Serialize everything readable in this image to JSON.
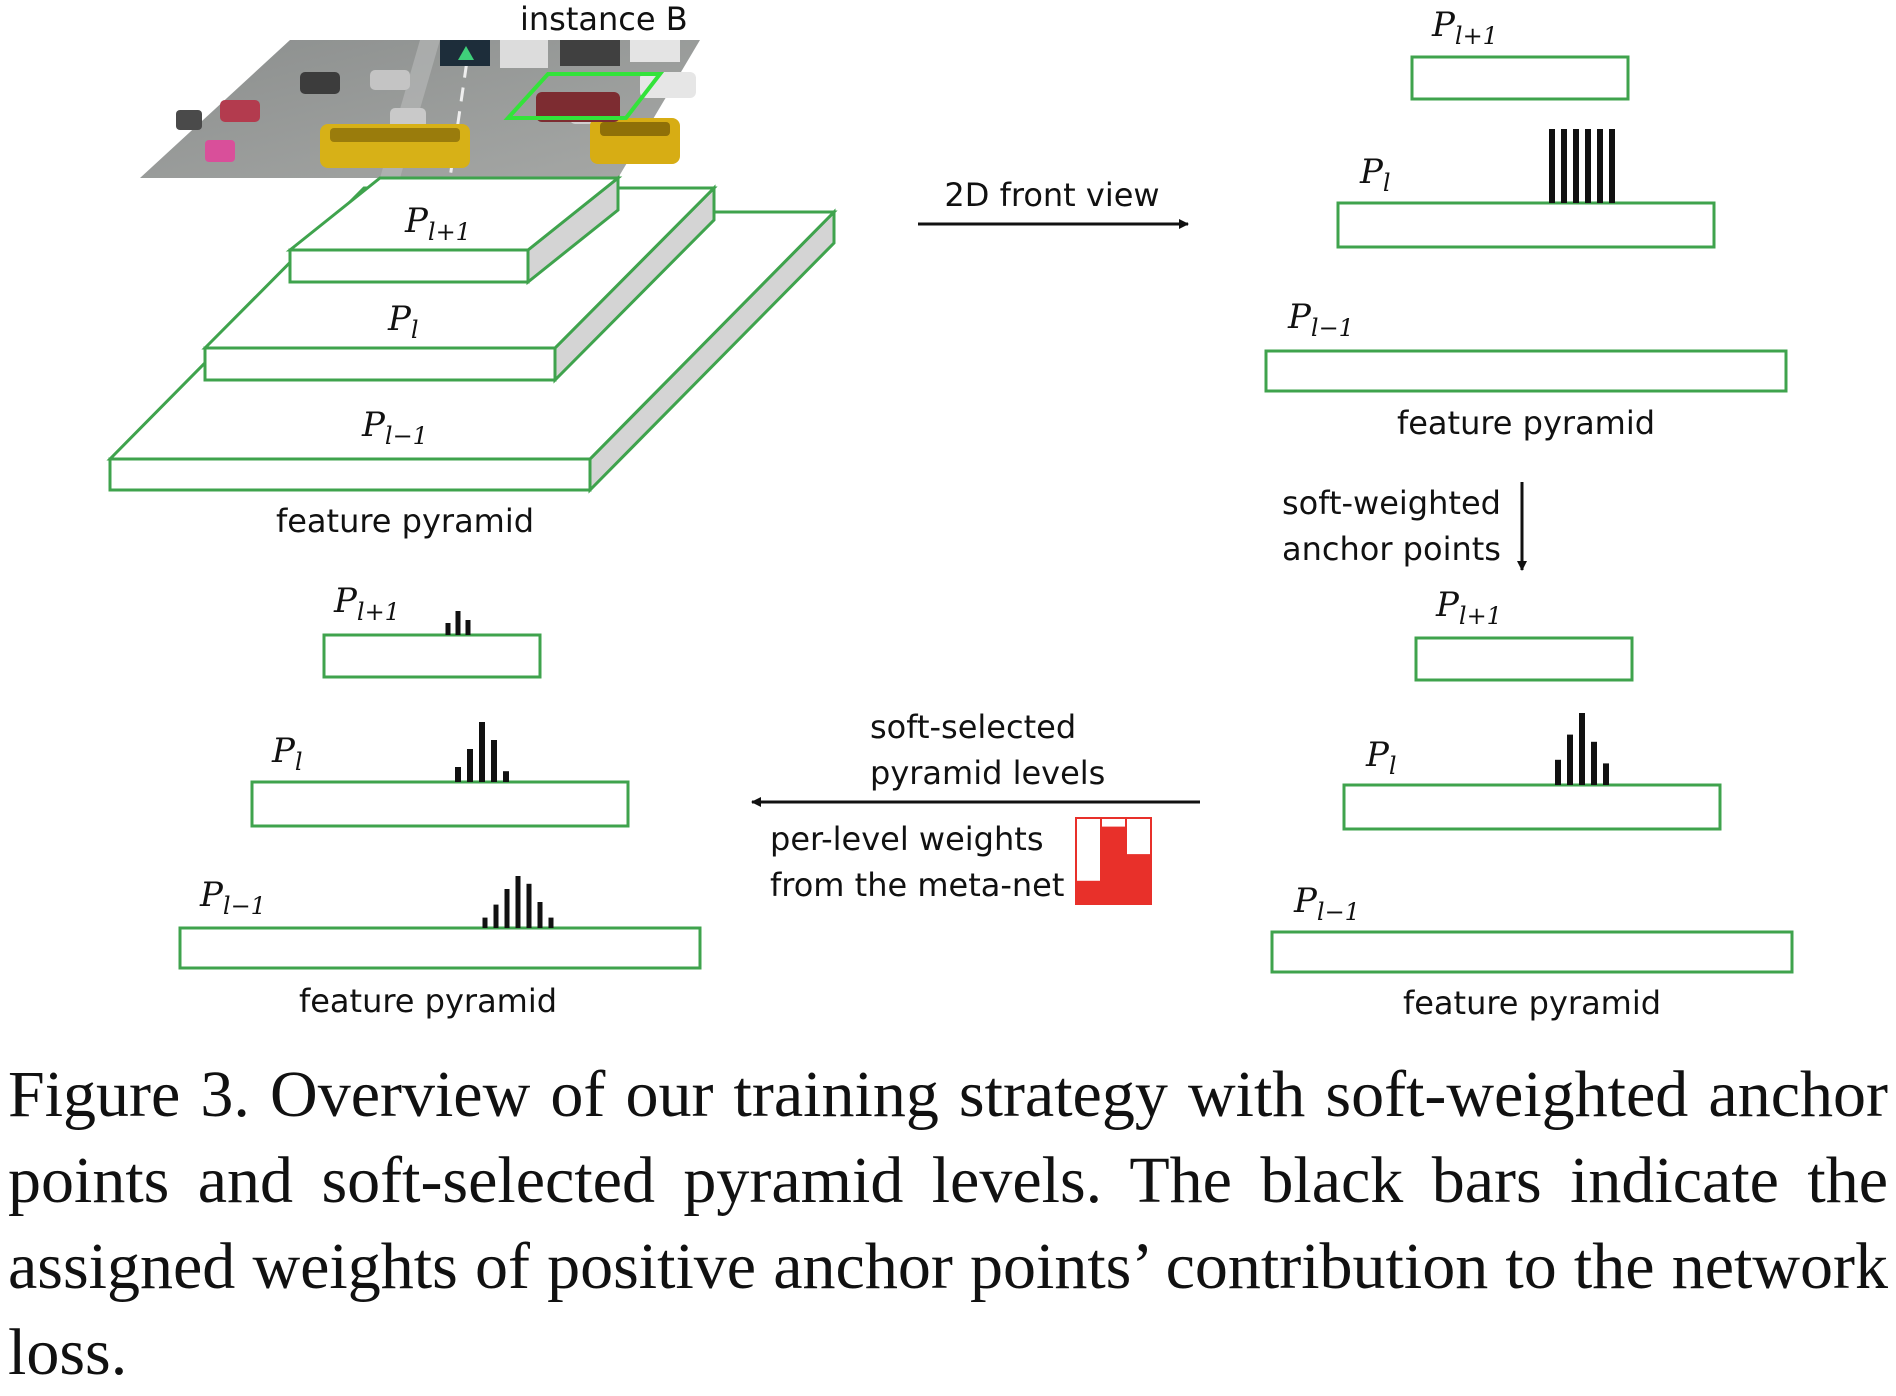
{
  "figure": {
    "photo_label": "instance B",
    "levels": {
      "upper": "P_{l+1}",
      "middle": "P_l",
      "lower": "P_{l-1}"
    },
    "level_parts": {
      "upper_base": "P",
      "upper_sub": "l+1",
      "middle_base": "P",
      "middle_sub": "l",
      "lower_base": "P",
      "lower_sub": "l−1"
    },
    "pyramid_label": "feature pyramid",
    "arrow_front_view": "2D front view",
    "arrow_anchor_line1": "soft-weighted",
    "arrow_anchor_line2": "anchor points",
    "arrow_levels_line1": "soft-selected",
    "arrow_levels_line2": "pyramid levels",
    "meta_line1": "per-level weights",
    "meta_line2": "from the meta-net",
    "colors": {
      "pyramid_outline": "#3fa34d",
      "pyramid_side": "#d4d4d4",
      "bars": "#111111",
      "meta_weights": "#e8302a",
      "box_highlight": "#33e33a"
    },
    "bars": {
      "top_right_middle": [
        1,
        1,
        1,
        1,
        1,
        1
      ],
      "bottom_right_upper": [],
      "bottom_right_middle": [
        0.35,
        0.7,
        1.0,
        0.6,
        0.3
      ],
      "bottom_left_upper": [
        0.4,
        0.8,
        0.5
      ],
      "bottom_left_middle": [
        0.25,
        0.55,
        1.0,
        0.7,
        0.18
      ],
      "bottom_left_lower": [
        0.2,
        0.45,
        0.75,
        1.0,
        0.85,
        0.5,
        0.2
      ]
    },
    "meta_net_weights": [
      0.27,
      0.9,
      0.58
    ]
  },
  "caption": "Figure 3. Overview of our training strategy with soft-weighted anchor points and soft-selected pyramid levels. The black bars indicate the assigned weights of positive anchor points’ contribution to the network loss."
}
